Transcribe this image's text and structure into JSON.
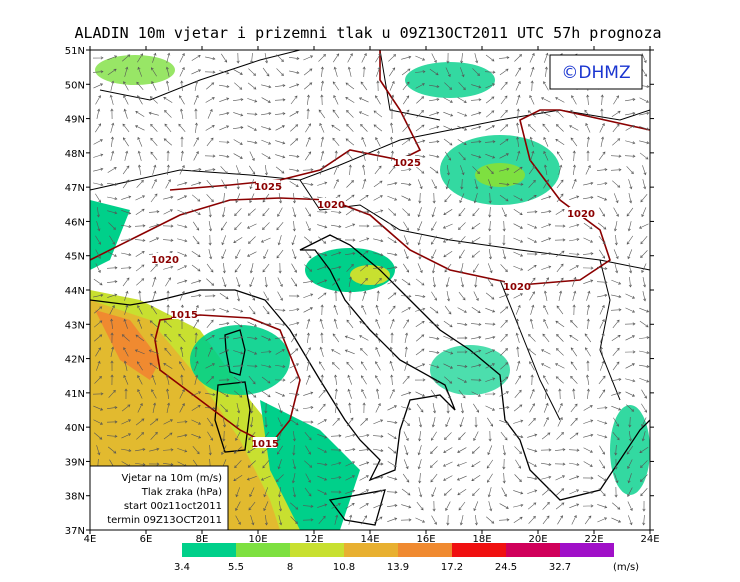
{
  "title": "ALADIN 10m vjetar i prizemni tlak u 09Z13OCT2011 UTC 57h prognoza",
  "logo": "©DHMZ",
  "lat_ticks": [
    "51N",
    "50N",
    "49N",
    "48N",
    "47N",
    "46N",
    "45N",
    "44N",
    "43N",
    "42N",
    "41N",
    "40N",
    "39N",
    "38N",
    "37N"
  ],
  "lon_ticks": [
    "4E",
    "6E",
    "8E",
    "10E",
    "12E",
    "14E",
    "16E",
    "18E",
    "20E",
    "22E",
    "24E"
  ],
  "info_box": [
    "Vjetar na 10m (m/s)",
    "Tlak zraka (hPa)",
    "start 00z11oct2011",
    "termin 09Z13OCT2011"
  ],
  "colorbar": {
    "levels": [
      3.4,
      5.5,
      8,
      10.8,
      13.9,
      17.2,
      24.5,
      32.7
    ],
    "colors": [
      "#00d08a",
      "#7ee040",
      "#c8e030",
      "#e8b030",
      "#f08a30",
      "#f01010",
      "#d0005a",
      "#a010c8"
    ],
    "unit": "(m/s)"
  },
  "isobar_labels": [
    1025,
    1025,
    1020,
    1020,
    1020,
    1020,
    1015,
    1015
  ]
}
